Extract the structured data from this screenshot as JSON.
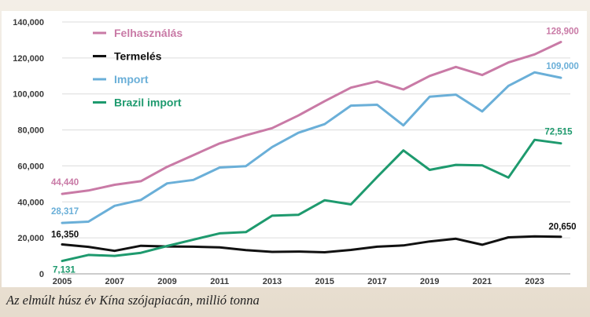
{
  "caption": "Az elmúlt húsz év Kína szójapiacán, millió tonna",
  "chart_data": {
    "type": "line",
    "title": "",
    "xlabel": "",
    "ylabel": "",
    "x": [
      2005,
      2006,
      2007,
      2008,
      2009,
      2010,
      2011,
      2012,
      2013,
      2014,
      2015,
      2016,
      2017,
      2018,
      2019,
      2020,
      2021,
      2022,
      2023,
      2024
    ],
    "x_tick_labels": [
      "2005",
      "2007",
      "2009",
      "2011",
      "2013",
      "2015",
      "2017",
      "2019",
      "2021",
      "2023"
    ],
    "y_tick_labels": [
      "0",
      "20,000",
      "40,000",
      "60,000",
      "80,000",
      "100,000",
      "120,000",
      "140,000"
    ],
    "ylim": [
      0,
      140000
    ],
    "grid": true,
    "legend_position": "top-left",
    "series": [
      {
        "name": "Felhasználás",
        "color": "#c97aa6",
        "values": [
          44440,
          46300,
          49500,
          51500,
          59500,
          66000,
          72500,
          77000,
          81000,
          88000,
          96000,
          103500,
          107000,
          102500,
          110000,
          115000,
          110500,
          117500,
          122000,
          128900
        ],
        "start_label": "44,440",
        "end_label": "128,900"
      },
      {
        "name": "Termelés",
        "color": "#111111",
        "values": [
          16350,
          15000,
          12800,
          15600,
          15200,
          15100,
          14700,
          13200,
          12200,
          12400,
          12000,
          13300,
          15100,
          15800,
          18000,
          19500,
          16200,
          20300,
          20800,
          20650
        ],
        "start_label": "16,350",
        "end_label": "20,650"
      },
      {
        "name": "Import",
        "color": "#6aafd8",
        "values": [
          28317,
          29000,
          37800,
          41100,
          50300,
          52200,
          59100,
          59900,
          70500,
          78400,
          83200,
          93500,
          94000,
          82500,
          98500,
          99600,
          90300,
          104500,
          112000,
          109000
        ],
        "start_label": "28,317",
        "end_label": "109,000"
      },
      {
        "name": "Brazil import",
        "color": "#1e9a6e",
        "values": [
          7131,
          10500,
          10000,
          11700,
          15500,
          19000,
          22500,
          23200,
          32300,
          32800,
          40900,
          38600,
          53800,
          68600,
          57800,
          60600,
          60300,
          53500,
          74500,
          72515
        ],
        "start_label": "7,131",
        "end_label": "72,515"
      }
    ]
  }
}
